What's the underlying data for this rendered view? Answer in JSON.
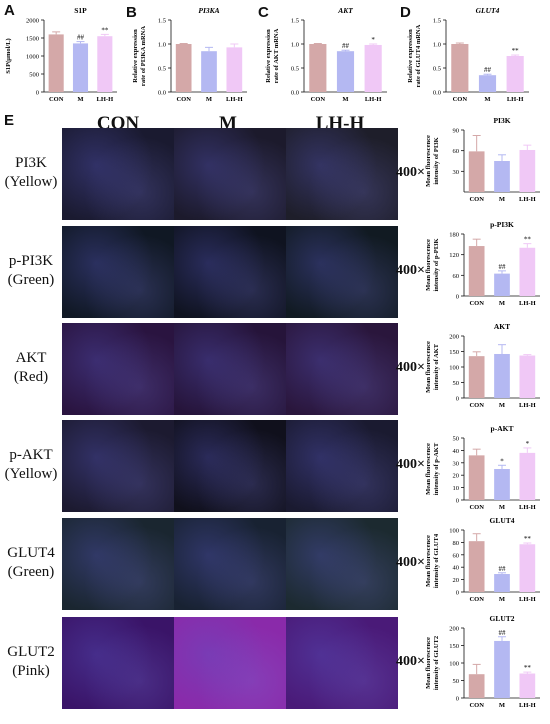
{
  "panel_letters": [
    "A",
    "B",
    "C",
    "D",
    "E"
  ],
  "if_section": {
    "column_headers": [
      "CON",
      "M",
      "LH-H"
    ],
    "row_labels": [
      {
        "line1": "PI3K",
        "line2": "(Yellow)"
      },
      {
        "line1": "p-PI3K",
        "line2": "(Green)"
      },
      {
        "line1": "AKT",
        "line2": "(Red)"
      },
      {
        "line1": "p-AKT",
        "line2": "(Yellow)"
      },
      {
        "line1": "GLUT4",
        "line2": "(Green)"
      },
      {
        "line1": "GLUT2",
        "line2": "(Pink)"
      }
    ],
    "magnification": "400×",
    "row_colors": [
      [
        "#1a1a30",
        "#1c1a2c",
        "#1e1e2a"
      ],
      [
        "#101824",
        "#0f1320",
        "#111a22"
      ],
      [
        "#2a1440",
        "#26143a",
        "#2a163c"
      ],
      [
        "#1c1a30",
        "#10101c",
        "#1a1a30"
      ],
      [
        "#1a2630",
        "#182232",
        "#1c2a30"
      ],
      [
        "#3a1468",
        "#8a2aaa",
        "#4a1a78"
      ]
    ]
  },
  "bar_colors": [
    "#d4a8a8",
    "#b4b8f2",
    "#f0c8f6"
  ],
  "chart_data": [
    {
      "id": "A",
      "type": "bar",
      "title": "S1P",
      "title_italic": false,
      "categories": [
        "CON",
        "M",
        "LH-H"
      ],
      "values": [
        1600,
        1350,
        1550
      ],
      "errors": [
        70,
        50,
        50
      ],
      "annotations": [
        "",
        "##",
        "**"
      ],
      "ylabel": "S1P(μmol/L)",
      "ylim": [
        0,
        2000
      ],
      "yticks": [
        0,
        500,
        1000,
        1500,
        2000
      ]
    },
    {
      "id": "B",
      "type": "bar",
      "title": "PI3KA",
      "title_italic": true,
      "categories": [
        "CON",
        "M",
        "LH-H"
      ],
      "values": [
        1.0,
        0.85,
        0.93
      ],
      "errors": [
        0.01,
        0.08,
        0.07
      ],
      "annotations": [
        "",
        "",
        ""
      ],
      "ylabel": "Relative expression rate of PI3KA mRNA",
      "ylim": [
        0,
        1.5
      ],
      "yticks": [
        0.0,
        0.5,
        1.0,
        1.5
      ]
    },
    {
      "id": "C",
      "type": "bar",
      "title": "AKT",
      "title_italic": true,
      "categories": [
        "CON",
        "M",
        "LH-H"
      ],
      "values": [
        1.0,
        0.85,
        0.98
      ],
      "errors": [
        0.01,
        0.02,
        0.02
      ],
      "annotations": [
        "",
        "##",
        "*"
      ],
      "ylabel": "Relative expression rate of AKT mRNA",
      "ylim": [
        0,
        1.5
      ],
      "yticks": [
        0.0,
        0.5,
        1.0,
        1.5
      ]
    },
    {
      "id": "D",
      "type": "bar",
      "title": "GLUT4",
      "title_italic": true,
      "categories": [
        "CON",
        "M",
        "LH-H"
      ],
      "values": [
        1.0,
        0.35,
        0.75
      ],
      "errors": [
        0.02,
        0.02,
        0.02
      ],
      "annotations": [
        "",
        "##",
        "**"
      ],
      "ylabel": "Relative expression rate of GLUT4 mRNA",
      "ylim": [
        0,
        1.5
      ],
      "yticks": [
        0.0,
        0.5,
        1.0,
        1.5
      ]
    },
    {
      "id": "E1",
      "type": "bar",
      "title": "PI3K",
      "title_italic": false,
      "categories": [
        "CON",
        "M",
        "LH-H"
      ],
      "values": [
        59,
        45,
        61
      ],
      "errors": [
        23,
        9,
        7
      ],
      "annotations": [
        "",
        "",
        ""
      ],
      "ylabel": "Mean fluorescence intensity of PI3K",
      "ylim": [
        0,
        90
      ],
      "yticks": [
        30,
        60,
        90
      ]
    },
    {
      "id": "E2",
      "type": "bar",
      "title": "p-PI3K",
      "title_italic": false,
      "categories": [
        "CON",
        "M",
        "LH-H"
      ],
      "values": [
        145,
        65,
        140
      ],
      "errors": [
        20,
        8,
        12
      ],
      "annotations": [
        "",
        "##",
        "**"
      ],
      "ylabel": "Mean fluorescence intensity of p-PI3K",
      "ylim": [
        0,
        180
      ],
      "yticks": [
        0,
        60,
        120,
        180
      ]
    },
    {
      "id": "E3",
      "type": "bar",
      "title": "AKT",
      "title_italic": false,
      "categories": [
        "CON",
        "M",
        "LH-H"
      ],
      "values": [
        135,
        142,
        137
      ],
      "errors": [
        14,
        30,
        3
      ],
      "annotations": [
        "",
        "",
        ""
      ],
      "ylabel": "Mean fluorescence intensity of AKT",
      "ylim": [
        0,
        200
      ],
      "yticks": [
        0,
        50,
        100,
        150,
        200
      ]
    },
    {
      "id": "E4",
      "type": "bar",
      "title": "p-AKT",
      "title_italic": false,
      "categories": [
        "CON",
        "M",
        "LH-H"
      ],
      "values": [
        36,
        25,
        38
      ],
      "errors": [
        5,
        3,
        4
      ],
      "annotations": [
        "",
        "*",
        "*"
      ],
      "ylabel": "Mean fluorescence intensity of p-AKT",
      "ylim": [
        0,
        50
      ],
      "yticks": [
        0,
        10,
        20,
        30,
        40,
        50
      ]
    },
    {
      "id": "E5",
      "type": "bar",
      "title": "GLUT4",
      "title_italic": false,
      "categories": [
        "CON",
        "M",
        "LH-H"
      ],
      "values": [
        82,
        29,
        77
      ],
      "errors": [
        12,
        2,
        2
      ],
      "annotations": [
        "",
        "##",
        "**"
      ],
      "ylabel": "Mean fluorescence intensity of GLUT4",
      "ylim": [
        0,
        100
      ],
      "yticks": [
        0,
        20,
        40,
        60,
        80,
        100
      ]
    },
    {
      "id": "E6",
      "type": "bar",
      "title": "GLUT2",
      "title_italic": false,
      "categories": [
        "CON",
        "M",
        "LH-H"
      ],
      "values": [
        68,
        163,
        70
      ],
      "errors": [
        28,
        12,
        4
      ],
      "annotations": [
        "",
        "##",
        "**"
      ],
      "ylabel": "Mean fluorescence intensity of GLUT2",
      "ylim": [
        0,
        200
      ],
      "yticks": [
        0,
        50,
        100,
        150,
        200
      ]
    }
  ]
}
